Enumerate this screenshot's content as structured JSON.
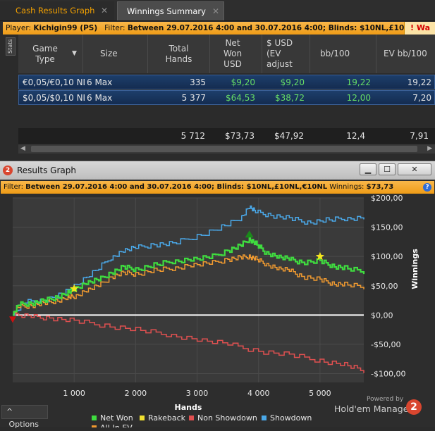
{
  "tabs": [
    {
      "label": "Cash Results Graph",
      "close": "✕"
    },
    {
      "label": "Winnings Summary",
      "close": "✕"
    }
  ],
  "top_filter": {
    "player_label": "Player:",
    "player_value": "Kichigin99 (PS)",
    "filter_label": "Filter:",
    "filter_value": "Between 29.07.2016 4:00 and 30.07.2016 4:00; Blinds: $10NL,£10NL,€10NL",
    "warning_text": "! Wa"
  },
  "stats_tab": "Stats",
  "table": {
    "columns": [
      "Game Type",
      "Size",
      "Total Hands",
      "Net Won USD",
      "$ USD (EV adjust",
      "bb/100",
      "EV bb/100"
    ],
    "rows": [
      {
        "game": "€0,05/€0,10 NL",
        "size": "6 Max",
        "hands": "335",
        "net": "$9,20",
        "ev_usd": "$9,20",
        "bb100": "19,22",
        "evbb": "19,22"
      },
      {
        "game": "$0,05/$0,10 NL",
        "size": "6 Max",
        "hands": "5 377",
        "net": "$64,53",
        "ev_usd": "$38,72",
        "bb100": "12,00",
        "evbb": "7,20"
      }
    ],
    "totals": {
      "hands": "5 712",
      "net": "$73,73",
      "ev_usd": "$47,92",
      "bb100": "12,4",
      "evbb": "7,91"
    }
  },
  "graph_window": {
    "title": "Results Graph",
    "logo": "2",
    "buttons": [
      "▁",
      "☐",
      "✕"
    ],
    "filter_prefix": "Filter:",
    "filter_value": "Between 29.07.2016 4:00 and 30.07.2016 4:00; Blinds: $10NL,£10NL,€10NL",
    "winnings_label": "Winnings:",
    "winnings_value": "$73,73",
    "help": "?"
  },
  "chart_data": {
    "type": "line",
    "xlabel": "Hands",
    "ylabel": "Winnings",
    "xlim": [
      0,
      5712
    ],
    "ylim": [
      -115,
      200
    ],
    "x_ticks": [
      1000,
      2000,
      3000,
      4000,
      5000
    ],
    "x_tick_labels": [
      "1 000",
      "2 000",
      "3 000",
      "4 000",
      "5 000"
    ],
    "y_ticks": [
      200,
      150,
      100,
      50,
      0,
      -50,
      -100
    ],
    "y_tick_labels": [
      "$200,00",
      "$150,00",
      "$100,00",
      "$50,00",
      "$0,00",
      "-$50,00",
      "-$100,00"
    ],
    "legend_position": "bottom-left",
    "series": [
      {
        "name": "Net Won",
        "color": "#3fdc3f",
        "x": [
          0,
          100,
          300,
          500,
          700,
          900,
          1000,
          1200,
          1400,
          1600,
          1800,
          2000,
          2300,
          2600,
          2900,
          3200,
          3500,
          3700,
          3850,
          3950,
          4100,
          4300,
          4500,
          4700,
          5000,
          5200,
          5400,
          5712
        ],
        "y": [
          0,
          18,
          20,
          24,
          30,
          38,
          45,
          55,
          60,
          72,
          82,
          78,
          85,
          92,
          95,
          98,
          110,
          118,
          130,
          122,
          108,
          100,
          95,
          90,
          92,
          84,
          80,
          74
        ]
      },
      {
        "name": "Rakeback",
        "color": "#f0e030",
        "x": [],
        "y": []
      },
      {
        "name": "Non Showdown",
        "color": "#e05050",
        "x": [
          0,
          300,
          600,
          1000,
          1500,
          2000,
          2500,
          3000,
          3500,
          4000,
          4500,
          5000,
          5400,
          5712
        ],
        "y": [
          0,
          -3,
          -5,
          -10,
          -18,
          -25,
          -33,
          -42,
          -50,
          -62,
          -68,
          -78,
          -85,
          -95
        ]
      },
      {
        "name": "Showdown",
        "color": "#4aa8e8",
        "x": [
          0,
          200,
          500,
          800,
          1000,
          1300,
          1600,
          1800,
          2000,
          2300,
          2600,
          3000,
          3400,
          3700,
          3850,
          3950,
          4200,
          4500,
          4800,
          5100,
          5400,
          5712
        ],
        "y": [
          0,
          22,
          25,
          35,
          50,
          72,
          98,
          110,
          115,
          120,
          122,
          135,
          150,
          165,
          185,
          176,
          170,
          165,
          158,
          162,
          165,
          166
        ]
      },
      {
        "name": "All-In EV",
        "color": "#f09a30",
        "x": [
          0,
          100,
          300,
          500,
          700,
          900,
          1000,
          1200,
          1400,
          1600,
          1800,
          2000,
          2300,
          2600,
          2900,
          3200,
          3500,
          3700,
          3850,
          3950,
          4100,
          4300,
          4500,
          4700,
          5000,
          5200,
          5400,
          5712
        ],
        "y": [
          0,
          14,
          16,
          20,
          24,
          30,
          32,
          42,
          50,
          65,
          72,
          70,
          76,
          80,
          85,
          88,
          95,
          98,
          100,
          96,
          88,
          80,
          76,
          66,
          60,
          54,
          52,
          48
        ]
      }
    ],
    "markers": [
      {
        "type": "star",
        "x": 1000,
        "y": 45,
        "color": "#f5e51e"
      },
      {
        "type": "triangle-up",
        "x": 3850,
        "y": 130,
        "color": "#1a8a1a"
      },
      {
        "type": "star",
        "x": 5000,
        "y": 100,
        "color": "#f5e51e"
      },
      {
        "type": "triangle-down",
        "x": 0,
        "y": 0,
        "color": "#cc1111"
      }
    ]
  },
  "footer": {
    "options_label": "Options",
    "options_icon": "^",
    "powered_by": "Powered by",
    "brand": "Hold'em Manager",
    "brand_logo": "2"
  }
}
